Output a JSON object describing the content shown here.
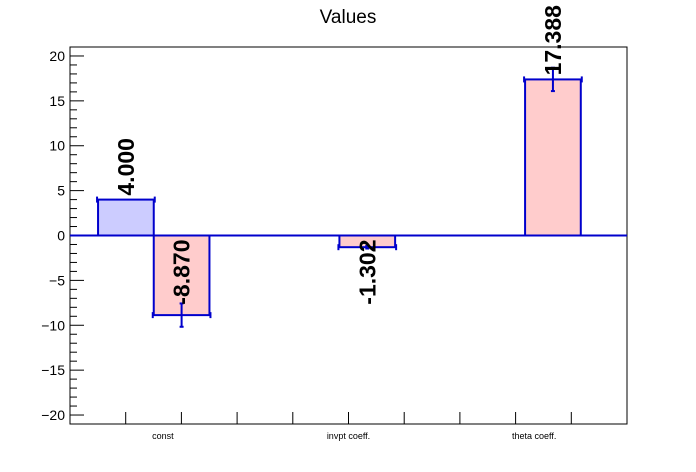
{
  "chart_data": {
    "type": "bar",
    "title": "Values",
    "xlabel": "",
    "ylabel": "",
    "ylim": [
      -21,
      21
    ],
    "yticks": [
      -20,
      -15,
      -10,
      -5,
      0,
      5,
      10,
      15,
      20
    ],
    "yticklabels": [
      "−20",
      "−15",
      "−10",
      "−5",
      "0",
      "5",
      "10",
      "15",
      "20"
    ],
    "categories": [
      "const",
      "invpt coeff.",
      "theta coeff."
    ],
    "grid": false,
    "bars": [
      {
        "category": "const",
        "slot": "first",
        "value": 4.0,
        "error": 0.0,
        "label": "4.000",
        "fill": "#ccccff"
      },
      {
        "category": "const",
        "slot": "second",
        "value": -8.87,
        "error": 1.3,
        "label": "-8.870",
        "fill": "#ffcccc"
      },
      {
        "category": "invpt coeff.",
        "slot": "second",
        "value": -1.302,
        "error": 0.15,
        "label": "-1.302",
        "fill": "#ffcccc"
      },
      {
        "category": "theta coeff.",
        "slot": "second",
        "value": 17.388,
        "error": 1.3,
        "label": "17.388",
        "fill": "#ffcccc"
      }
    ],
    "colors": {
      "edge": "#0000cc",
      "zero_line": "#0000cc",
      "error_bar": "#0000cc"
    }
  }
}
